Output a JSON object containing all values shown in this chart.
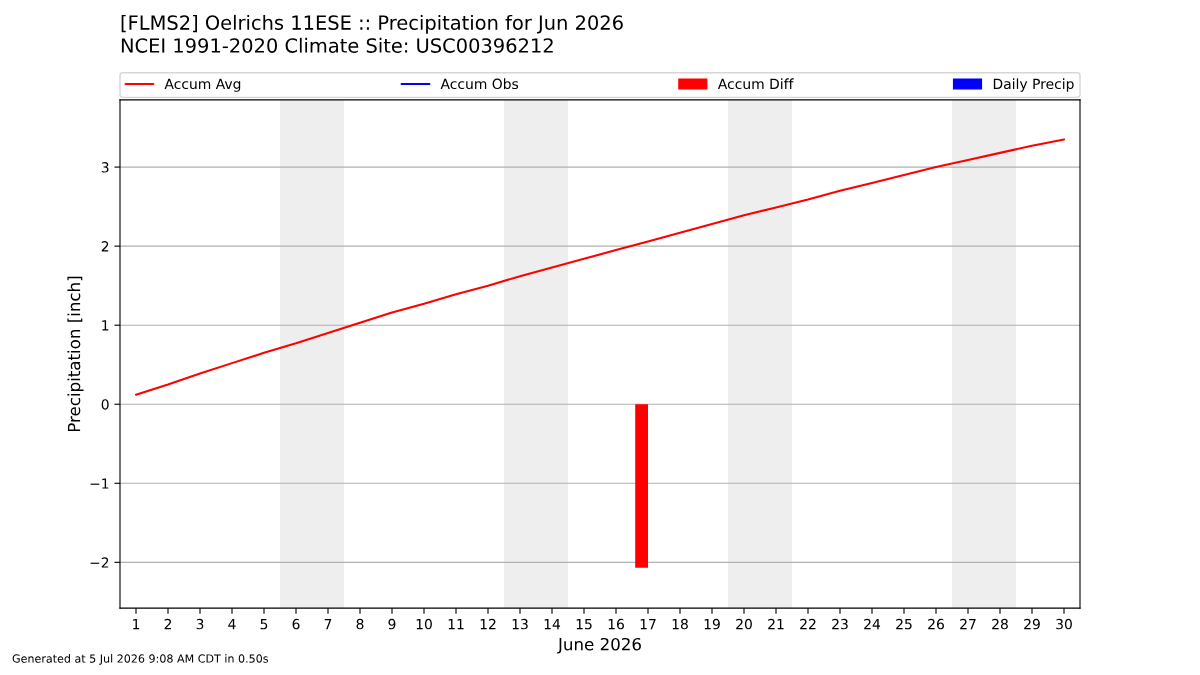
{
  "chart_data": {
    "type": "line",
    "title": "[FLMS2] Oelrichs 11ESE :: Precipitation for Jun 2026",
    "subtitle": "NCEI 1991-2020 Climate Site: USC00396212",
    "xlabel": "June 2026",
    "ylabel": "Precipitation [inch]",
    "x": [
      1,
      2,
      3,
      4,
      5,
      6,
      7,
      8,
      9,
      10,
      11,
      12,
      13,
      14,
      15,
      16,
      17,
      18,
      19,
      20,
      21,
      22,
      23,
      24,
      25,
      26,
      27,
      28,
      29,
      30
    ],
    "series": [
      {
        "name": "Accum Avg",
        "color": "#ff0000",
        "values": [
          0.12,
          0.25,
          0.39,
          0.52,
          0.65,
          0.77,
          0.9,
          1.03,
          1.16,
          1.27,
          1.39,
          1.5,
          1.62,
          1.73,
          1.84,
          1.95,
          2.06,
          2.17,
          2.28,
          2.39,
          2.49,
          2.59,
          2.7,
          2.8,
          2.9,
          3.0,
          3.09,
          3.18,
          3.27,
          3.35
        ]
      },
      {
        "name": "Accum Obs",
        "color": "#0000ff",
        "values": [
          null,
          null,
          null,
          null,
          null,
          null,
          null,
          null,
          null,
          null,
          null,
          null,
          null,
          null,
          null,
          null,
          null,
          null,
          null,
          null,
          null,
          null,
          null,
          null,
          null,
          null,
          null,
          null,
          null,
          null
        ]
      },
      {
        "name": "Accum Diff",
        "type": "bar",
        "color": "#ff0000",
        "values": [
          null,
          null,
          null,
          null,
          null,
          null,
          null,
          null,
          null,
          null,
          null,
          null,
          null,
          null,
          null,
          null,
          -2.07,
          null,
          null,
          null,
          null,
          null,
          null,
          null,
          null,
          null,
          null,
          null,
          null,
          null
        ]
      },
      {
        "name": "Daily Precip",
        "type": "bar",
        "color": "#0000ff",
        "values": [
          null,
          null,
          null,
          null,
          null,
          null,
          null,
          null,
          null,
          null,
          null,
          null,
          null,
          null,
          null,
          null,
          null,
          null,
          null,
          null,
          null,
          null,
          null,
          null,
          null,
          null,
          null,
          null,
          null,
          null
        ]
      }
    ],
    "xlim": [
      0.5,
      30.5
    ],
    "xticks": [
      1,
      2,
      3,
      4,
      5,
      6,
      7,
      8,
      9,
      10,
      11,
      12,
      13,
      14,
      15,
      16,
      17,
      18,
      19,
      20,
      21,
      22,
      23,
      24,
      25,
      26,
      27,
      28,
      29,
      30
    ],
    "ylim": [
      -2.58,
      3.85
    ],
    "yticks": [
      {
        "value": -2,
        "label": "−2"
      },
      {
        "value": -1,
        "label": "−1"
      },
      0,
      1,
      2,
      3
    ],
    "bands": [
      {
        "axis": "x",
        "from": 5.5,
        "to": 7.5,
        "color": "#eeeeee"
      },
      {
        "axis": "x",
        "from": 12.5,
        "to": 14.5,
        "color": "#eeeeee"
      },
      {
        "axis": "x",
        "from": 19.5,
        "to": 21.5,
        "color": "#eeeeee"
      },
      {
        "axis": "x",
        "from": 26.5,
        "to": 28.5,
        "color": "#eeeeee"
      }
    ],
    "grid": "y",
    "legend": "top",
    "line_style": "solid",
    "annotations": [
      "Generated at 5 Jul 2026 9:08 AM CDT in 0.50s"
    ]
  }
}
